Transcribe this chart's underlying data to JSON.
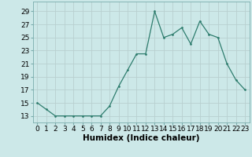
{
  "x": [
    0,
    1,
    2,
    3,
    4,
    5,
    6,
    7,
    8,
    9,
    10,
    11,
    12,
    13,
    14,
    15,
    16,
    17,
    18,
    19,
    20,
    21,
    22,
    23
  ],
  "y": [
    15,
    14,
    13,
    13,
    13,
    13,
    13,
    13,
    14.5,
    17.5,
    20,
    22.5,
    22.5,
    29,
    25,
    25.5,
    26.5,
    24,
    27.5,
    25.5,
    25,
    21,
    18.5,
    17
  ],
  "line_color": "#2e7d6e",
  "marker_color": "#2e7d6e",
  "bg_color": "#cce8e8",
  "grid_color": "#b8d0d0",
  "xlabel": "Humidex (Indice chaleur)",
  "xlabel_fontsize": 7.5,
  "tick_fontsize": 6.5,
  "ylabel_ticks": [
    13,
    15,
    17,
    19,
    21,
    23,
    25,
    27,
    29
  ],
  "xlim": [
    -0.5,
    23.5
  ],
  "ylim": [
    12.0,
    30.5
  ],
  "xtick_labels": [
    "0",
    "1",
    "2",
    "3",
    "4",
    "5",
    "6",
    "7",
    "8",
    "9",
    "10",
    "11",
    "12",
    "13",
    "14",
    "15",
    "16",
    "17",
    "18",
    "19",
    "20",
    "21",
    "22",
    "23"
  ]
}
